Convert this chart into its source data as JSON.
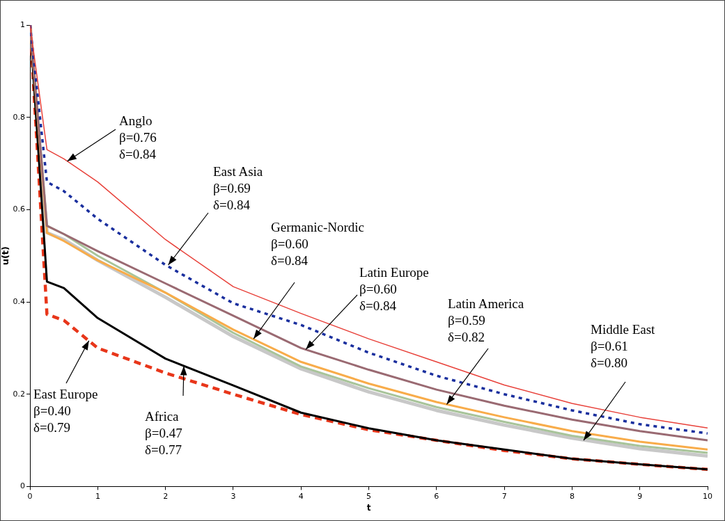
{
  "chart_data": {
    "type": "line",
    "xlabel": "t",
    "ylabel": "u(t)",
    "x": [
      0,
      0.25,
      0.5,
      1,
      2,
      3,
      4,
      5,
      6,
      7,
      8,
      9,
      10
    ],
    "xlim": [
      0,
      10
    ],
    "xticks": [
      0,
      1,
      2,
      3,
      4,
      5,
      6,
      7,
      8,
      9,
      10
    ],
    "ylim": [
      0,
      1
    ],
    "yticks": [
      0,
      0.2,
      0.4,
      0.6,
      0.8,
      1
    ],
    "grid": false,
    "legend": false,
    "marker": "none",
    "series": [
      {
        "color": "#e8413a",
        "line_style": "solid",
        "values": [
          1,
          0.73,
          0.71,
          0.66,
          0.535,
          0.433,
          0.375,
          0.32,
          0.27,
          0.22,
          0.18,
          0.15,
          0.127
        ]
      },
      {
        "color": "#1a2f9e",
        "line_style": "dotted",
        "values": [
          1,
          0.66,
          0.64,
          0.58,
          0.48,
          0.397,
          0.35,
          0.29,
          0.24,
          0.2,
          0.165,
          0.135,
          0.115
        ]
      },
      {
        "color": "#c8c8c8",
        "line_style": "solid",
        "values": [
          1,
          0.55,
          0.535,
          0.49,
          0.41,
          0.325,
          0.255,
          0.205,
          0.165,
          0.133,
          0.105,
          0.082,
          0.066
        ]
      },
      {
        "color": "#9a6a72",
        "line_style": "solid",
        "values": [
          1,
          0.565,
          0.547,
          0.51,
          0.44,
          0.37,
          0.3,
          0.253,
          0.21,
          0.175,
          0.145,
          0.12,
          0.1
        ]
      },
      {
        "color": "#f8ac4a",
        "line_style": "solid",
        "values": [
          1,
          0.55,
          0.532,
          0.49,
          0.42,
          0.34,
          0.27,
          0.223,
          0.183,
          0.15,
          0.12,
          0.097,
          0.08
        ]
      },
      {
        "color": "#a8c49a",
        "line_style": "solid",
        "values": [
          1,
          0.565,
          0.547,
          0.5,
          0.42,
          0.333,
          0.26,
          0.213,
          0.172,
          0.14,
          0.11,
          0.088,
          0.073
        ]
      },
      {
        "color": "#000000",
        "line_style": "solid",
        "values": [
          1,
          0.444,
          0.43,
          0.365,
          0.277,
          0.219,
          0.16,
          0.126,
          0.1,
          0.08,
          0.06,
          0.048,
          0.037
        ]
      },
      {
        "color": "#e8361a",
        "line_style": "dashed",
        "values": [
          1,
          0.373,
          0.36,
          0.3,
          0.246,
          0.2,
          0.156,
          0.123,
          0.1,
          0.078,
          0.06,
          0.048,
          0.037
        ]
      }
    ],
    "annotations": [
      {
        "text": "Anglo\nβ=0.76\nδ=0.84",
        "x": 0.55,
        "y": 0.705
      },
      {
        "text": "East Asia\nβ=0.69\nδ=0.84",
        "x": 2.04,
        "y": 0.48
      },
      {
        "text": "Germanic-Nordic\nβ=0.60\nδ=0.84",
        "x": 3.3,
        "y": 0.32
      },
      {
        "text": "Latin Europe\nβ=0.60\nδ=0.84",
        "x": 4.07,
        "y": 0.297
      },
      {
        "text": "Latin America\nβ=0.59\nδ=0.82",
        "x": 6.15,
        "y": 0.178
      },
      {
        "text": "Middle East\nβ=0.61\nδ=0.80",
        "x": 8.17,
        "y": 0.1
      },
      {
        "text": "East Europe\nβ=0.40\nδ=0.79",
        "x": 0.87,
        "y": 0.316
      },
      {
        "text": "Africa\nβ=0.47\nδ=0.77",
        "x": 2.27,
        "y": 0.261
      }
    ]
  }
}
